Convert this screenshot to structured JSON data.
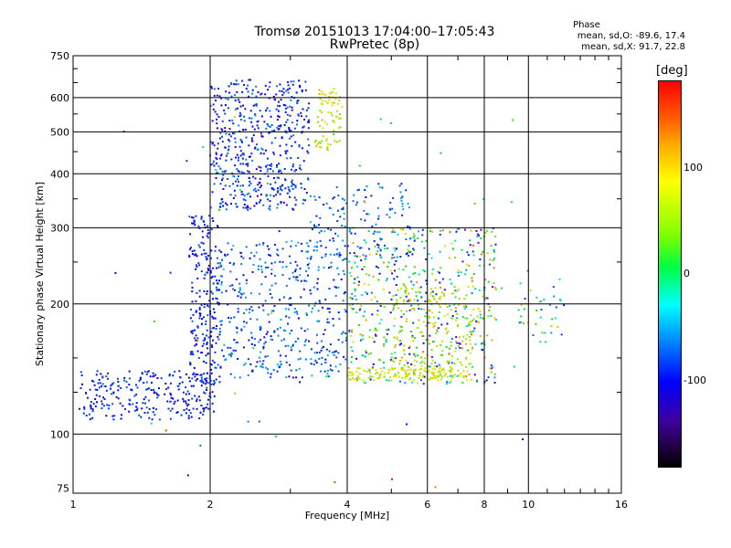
{
  "title": {
    "line1": "Tromsø 20151013 17:04:00–17:05:43",
    "line2": "RwPretec (8p)"
  },
  "phase_legend": {
    "heading": "Phase",
    "line_o": "mean, sd,O: -89.6, 17.4",
    "line_x": "mean, sd,X: 91.7, 22.8"
  },
  "colorbar": {
    "unit": "[deg]",
    "ticks": [
      "100",
      "0",
      "-100"
    ],
    "tick_values": [
      100,
      0,
      -100
    ],
    "range": [
      -180,
      180
    ]
  },
  "chart_data": {
    "type": "scatter",
    "xlabel": "Frequency [MHz]",
    "ylabel": "Stationary phase Virtual Height [km]",
    "xscale": "log",
    "yscale": "log",
    "xlim": [
      1,
      16
    ],
    "ylim": [
      73,
      750
    ],
    "xticks": [
      1,
      2,
      4,
      6,
      8,
      10,
      16
    ],
    "xtick_labels": [
      "1",
      "2",
      "4",
      "6",
      "8",
      "10",
      "16"
    ],
    "yticks": [
      75,
      100,
      200,
      300,
      400,
      500,
      600,
      750
    ],
    "ytick_labels": [
      "75",
      "100",
      "200",
      "300",
      "400",
      "500",
      "600",
      "750"
    ],
    "grid": true,
    "color_by": "phase",
    "echo_regions": [
      {
        "x": [
          1.02,
          2.05
        ],
        "y": [
          108,
          140
        ],
        "phase": [
          -110,
          -70
        ],
        "density": 260
      },
      {
        "x": [
          1.8,
          2.1
        ],
        "y": [
          130,
          320
        ],
        "phase": [
          -115,
          -70
        ],
        "density": 240
      },
      {
        "x": [
          2.0,
          3.3
        ],
        "y": [
          330,
          660
        ],
        "phase": [
          -120,
          -60
        ],
        "density": 520
      },
      {
        "x": [
          3.4,
          3.9
        ],
        "y": [
          450,
          630
        ],
        "phase": [
          80,
          130
        ],
        "density": 70
      },
      {
        "x": [
          2.1,
          4.0
        ],
        "y": [
          135,
          280
        ],
        "phase": [
          -115,
          -40
        ],
        "density": 420
      },
      {
        "x": [
          3.3,
          5.5
        ],
        "y": [
          250,
          380
        ],
        "phase": [
          -100,
          -40
        ],
        "density": 140
      },
      {
        "x": [
          4.0,
          8.5
        ],
        "y": [
          130,
          300
        ],
        "phase": [
          -150,
          150
        ],
        "density": 500
      },
      {
        "x": [
          4.0,
          7.5
        ],
        "y": [
          133,
          142
        ],
        "phase": [
          90,
          120
        ],
        "density": 140
      },
      {
        "x": [
          5.0,
          7.8
        ],
        "y": [
          140,
          220
        ],
        "phase": [
          70,
          130
        ],
        "density": 180
      },
      {
        "x": [
          9.5,
          12.0
        ],
        "y": [
          160,
          240
        ],
        "phase": [
          -100,
          130
        ],
        "density": 40
      },
      {
        "x": [
          1.2,
          10.0
        ],
        "y": [
          75,
          620
        ],
        "phase": [
          -180,
          180
        ],
        "density": 70
      }
    ]
  }
}
